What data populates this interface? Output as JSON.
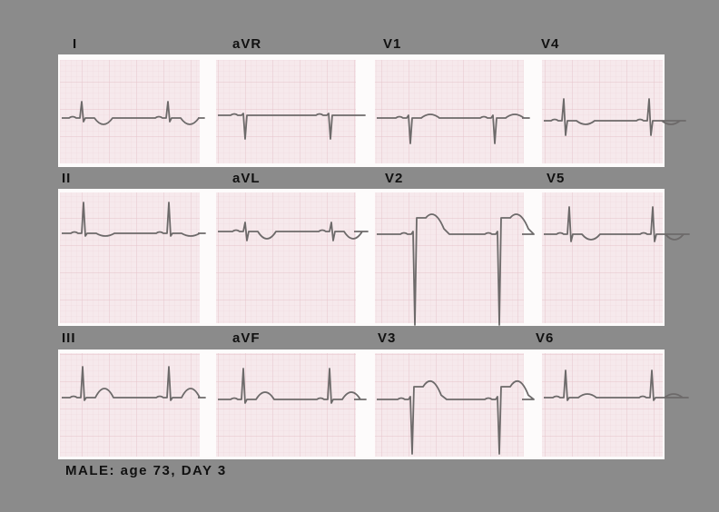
{
  "leads": {
    "row1": [
      "I",
      "aVR",
      "V1",
      "V4"
    ],
    "row2": [
      "II",
      "aVL",
      "V2",
      "V5"
    ],
    "row3": [
      "III",
      "aVF",
      "V3",
      "V6"
    ]
  },
  "caption": "MALE: age 73, DAY 3",
  "colors": {
    "background": "#8b8b8b",
    "paper": "#f6e9ec",
    "grid": "#e8c9cf",
    "trace": "#6d6a6a"
  }
}
